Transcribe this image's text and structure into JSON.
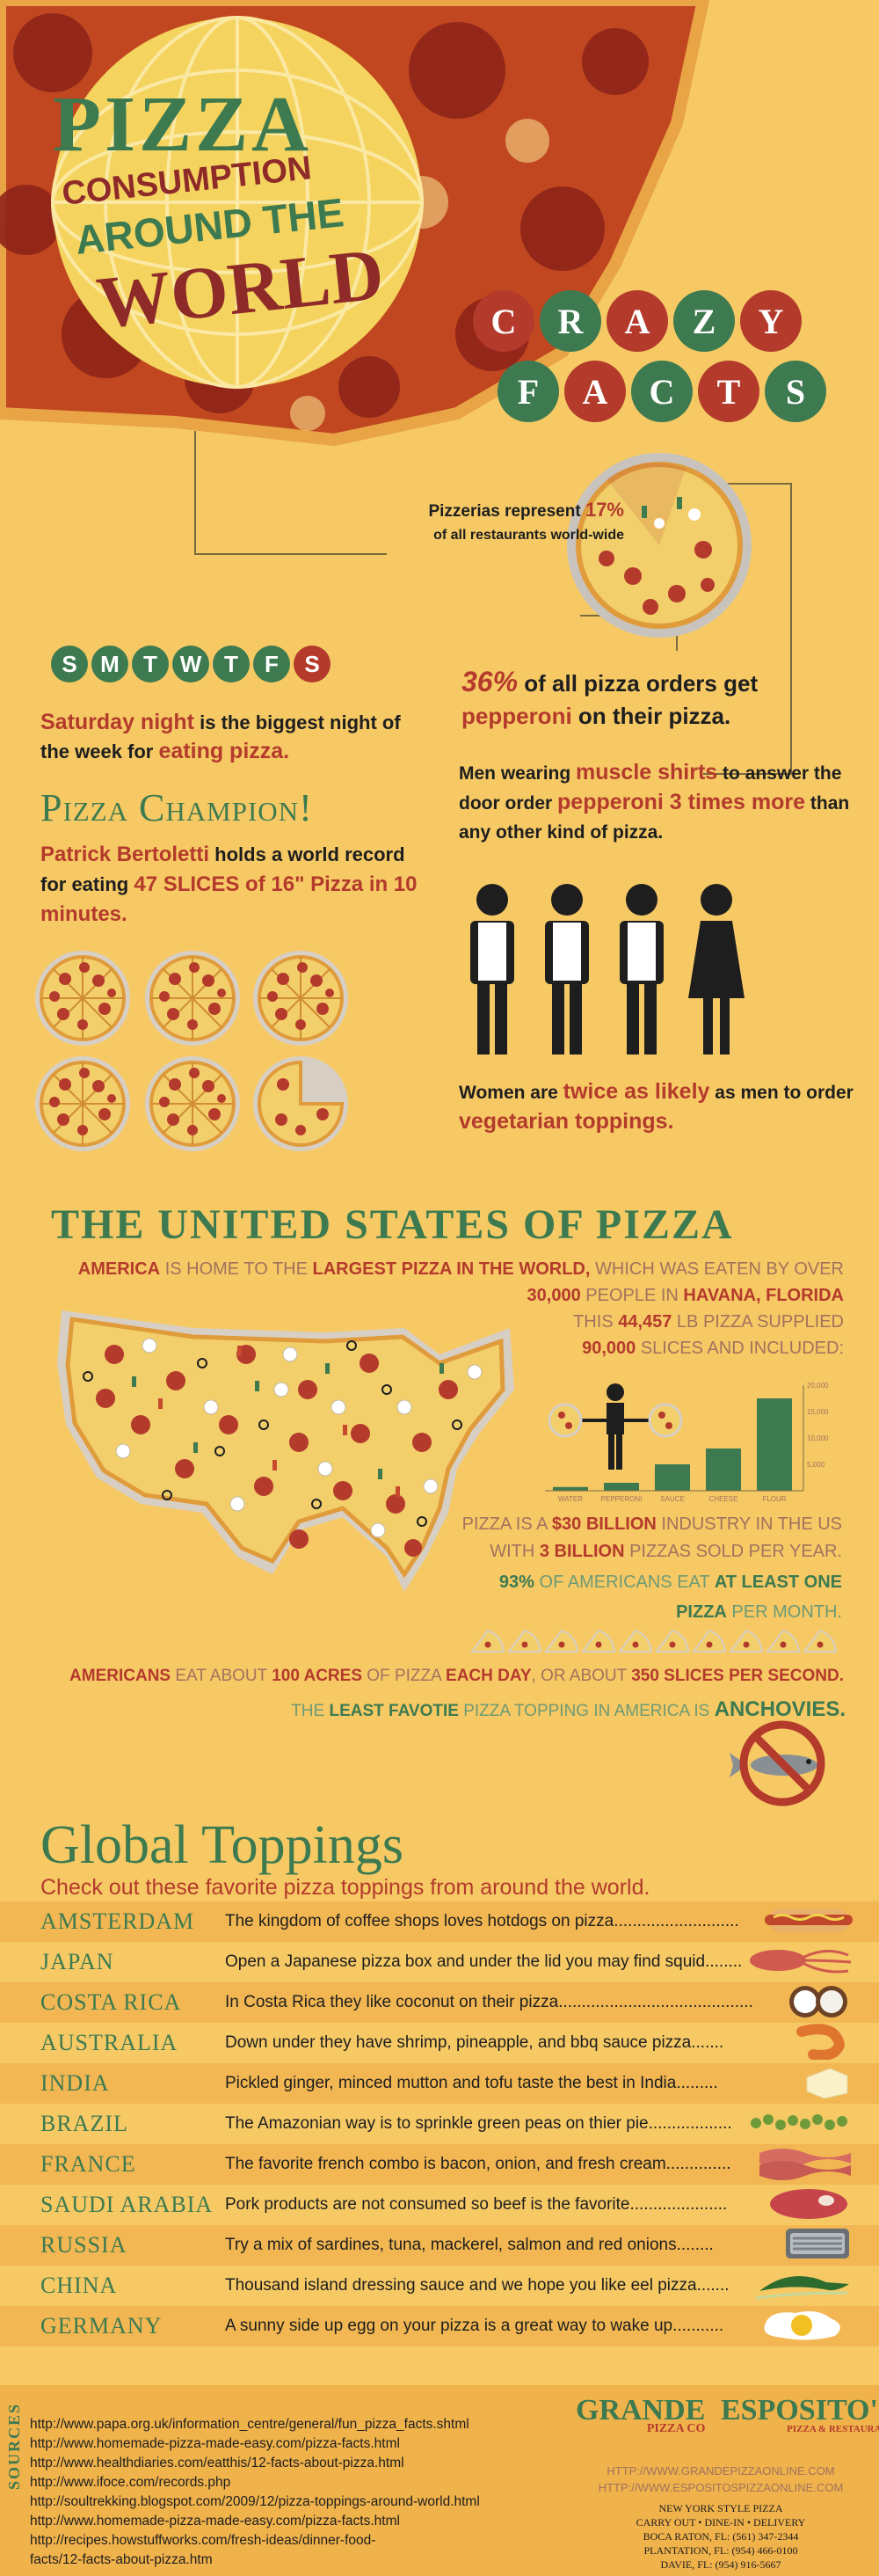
{
  "header": {
    "title_pizza": "PIZZA",
    "title_consumption": "CONSUMPTION",
    "title_around": "AROUND THE",
    "title_world": "WORLD",
    "crazy": [
      "C",
      "R",
      "A",
      "Z",
      "Y"
    ],
    "facts": [
      "F",
      "A",
      "C",
      "T",
      "S"
    ]
  },
  "facts": {
    "pizzerias_pre": "Pizzerias represent",
    "pizzerias_pct": "17%",
    "pizzerias_post": "of all restaurants world-wide",
    "days": [
      "S",
      "M",
      "T",
      "W",
      "T",
      "F",
      "S"
    ],
    "saturday_1": "Saturday night",
    "saturday_2": " is the biggest night of the week for ",
    "saturday_3": "eating pizza.",
    "pepperoni_pct": "36%",
    "pepperoni_1": " of all pizza orders get ",
    "pepperoni_2": "pepperoni",
    "pepperoni_3": " on their pizza.",
    "champion_title": "Pizza Champion!",
    "champion_name": "Patrick Bertoletti",
    "champion_1": " holds a world record for eating ",
    "champion_2": "47 SLICES of 16\" Pizza in 10 minutes.",
    "muscle_1": "Men wearing ",
    "muscle_2": "muscle shirts",
    "muscle_3": " to answer the door order ",
    "muscle_4": "pepperoni 3 times more",
    "muscle_5": " than any other kind of pizza.",
    "women_1": "Women are ",
    "women_2": "twice as likely",
    "women_3": " as men to order ",
    "women_4": "vegetarian toppings."
  },
  "usa": {
    "title": "THE UNITED STATES OF PIZZA",
    "line1_a": "AMERICA",
    "line1_b": " IS HOME TO THE ",
    "line1_c": "LARGEST PIZZA IN THE WORLD,",
    "line1_d": " WHICH WAS EATEN BY OVER",
    "line2_a": "30,000",
    "line2_b": " PEOPLE IN ",
    "line2_c": "HAVANA, FLORIDA",
    "line3_a": "THIS ",
    "line3_b": "44,457",
    "line3_c": " LB PIZZA SUPPLIED",
    "line4_a": "90,000",
    "line4_b": " SLICES AND INCLUDED:",
    "industry_1": "PIZZA IS A ",
    "industry_2": "$30 BILLION",
    "industry_3": " INDUSTRY IN THE US WITH ",
    "industry_4": "3 BILLION",
    "industry_5": " PIZZAS SOLD PER YEAR.",
    "pct_1": "93%",
    "pct_2": " OF AMERICANS EAT ",
    "pct_3": "AT LEAST ONE",
    "pct_4": "PIZZA",
    "pct_5": " PER MONTH.",
    "acres_1": "AMERICANS",
    "acres_2": " EAT ABOUT ",
    "acres_3": "100 ACRES",
    "acres_4": " OF PIZZA ",
    "acres_5": "EACH DAY",
    "acres_6": ", OR ABOUT ",
    "acres_7": "350 SLICES PER SECOND.",
    "least_1": "THE ",
    "least_2": "LEAST FAVOTIE",
    "least_3": " PIZZA TOPPING IN AMERICA IS ",
    "least_4": "ANCHOVIES."
  },
  "chart_data": {
    "type": "bar",
    "categories": [
      "WATER",
      "PEPPERONI",
      "SAUCE",
      "CHEESE",
      "FLOUR"
    ],
    "values": [
      700,
      1500,
      5000,
      8000,
      17500
    ],
    "yticks": [
      "5,000",
      "10,000",
      "15,000",
      "20,000"
    ],
    "ylim": [
      0,
      20000
    ]
  },
  "toppings": {
    "title": "Global Toppings",
    "subtitle": "Check out these favorite pizza toppings from around the world.",
    "items": [
      {
        "country": "AMSTERDAM",
        "text": "The kingdom of coffee shops loves hotdogs on pizza...........................",
        "icon": "hotdog-icon"
      },
      {
        "country": "JAPAN",
        "text": "Open a Japanese pizza box and under the lid you may find squid........",
        "icon": "squid-icon"
      },
      {
        "country": "COSTA RICA",
        "text": "In Costa Rica they like coconut on their pizza.............................................",
        "icon": "coconut-icon"
      },
      {
        "country": "AUSTRALIA",
        "text": "Down under they have shrimp, pineapple, and bbq sauce pizza.......",
        "icon": "shrimp-icon"
      },
      {
        "country": "INDIA",
        "text": "Pickled ginger, minced mutton and tofu taste the best in India.........",
        "icon": "tofu-icon"
      },
      {
        "country": "BRAZIL",
        "text": "The Amazonian way is to sprinkle green peas on thier pie..................",
        "icon": "peas-icon"
      },
      {
        "country": "FRANCE",
        "text": "The favorite french combo is bacon, onion, and fresh cream..............",
        "icon": "bacon-icon"
      },
      {
        "country": "SAUDI ARABIA",
        "text": "Pork products are not consumed so beef is the favorite.....................",
        "icon": "beef-icon"
      },
      {
        "country": "RUSSIA",
        "text": "Try a mix of sardines, tuna, mackerel, salmon and red onions........",
        "icon": "sardines-icon"
      },
      {
        "country": "CHINA",
        "text": "Thousand island dressing sauce and we hope you like eel pizza.......",
        "icon": "eel-icon"
      },
      {
        "country": "GERMANY",
        "text": "A sunny side up egg on your pizza is a great way to wake up...........",
        "icon": "egg-icon"
      }
    ]
  },
  "sources": {
    "label": "SOURCES",
    "links": [
      "http://www.papa.org.uk/information_centre/general/fun_pizza_facts.shtml",
      "http://www.homemade-pizza-made-easy.com/pizza-facts.html",
      "http://www.healthdiaries.com/eatthis/12-facts-about-pizza.html",
      "http://www.ifoce.com/records.php",
      "http://soultrekking.blogspot.com/2009/12/pizza-toppings-around-world.html",
      "http://www.homemade-pizza-made-easy.com/pizza-facts.html",
      "http://recipes.howstuffworks.com/fresh-ideas/dinner-food-",
      "facts/12-facts-about-pizza.htm"
    ]
  },
  "footer": {
    "grande_1": "GRANDE",
    "grande_2": "PIZZA CO",
    "esposito_1": "ESPOSITO'S",
    "esposito_2": "PIZZA & RESTAURANT",
    "url1": "HTTP://WWW.GRANDEPIZZAONLINE.COM",
    "url2": "HTTP://WWW.ESPOSITOSPIZZAONLINE.COM",
    "info": [
      "NEW YORK STYLE PIZZA",
      "CARRY OUT • DINE-IN • DELIVERY",
      "BOCA RATON, FL: (561) 347-2344",
      "PLANTATION, FL: (954) 466-0100",
      "DAVIE, FL: (954) 916-5667"
    ]
  },
  "colors": {
    "background": "#f6c965",
    "green": "#3d7a50",
    "red": "#b43a2c",
    "dark": "#1e1e1e"
  }
}
